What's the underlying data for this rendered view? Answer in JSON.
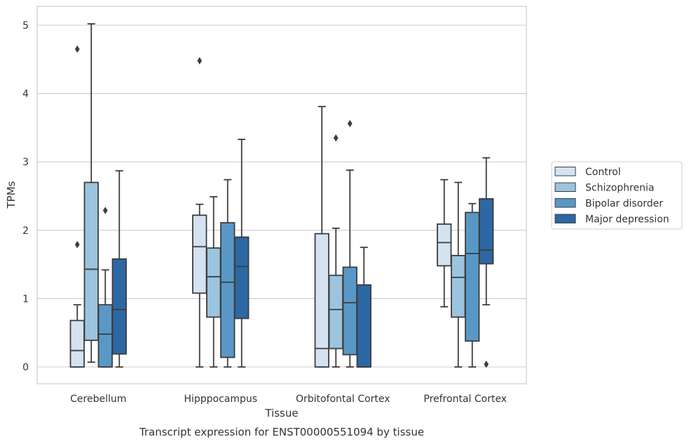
{
  "caption": "Transcript expression for ENST00000551094 by tissue",
  "chart_data": {
    "type": "box",
    "xlabel": "Tissue",
    "ylabel": "TPMs",
    "ylim": [
      -0.25,
      5.27
    ],
    "yticks": [
      0,
      1,
      2,
      3,
      4,
      5
    ],
    "grid": true,
    "legend_position": "right",
    "categories": [
      "Cerebellum",
      "Hipppocampus",
      "Orbitofontal Cortex",
      "Prefrontal Cortex"
    ],
    "series": [
      {
        "name": "Control",
        "color": "#d4e2f1",
        "boxes": [
          {
            "whisker_low": 0.0,
            "q1": 0.0,
            "median": 0.24,
            "q3": 0.68,
            "whisker_high": 0.91,
            "outliers": [
              1.79,
              4.65
            ]
          },
          {
            "whisker_low": 0.0,
            "q1": 1.08,
            "median": 1.76,
            "q3": 2.22,
            "whisker_high": 2.38,
            "outliers": [
              4.48
            ]
          },
          {
            "whisker_low": 0.0,
            "q1": 0.0,
            "median": 0.27,
            "q3": 1.95,
            "whisker_high": 3.81,
            "outliers": []
          },
          {
            "whisker_low": 0.88,
            "q1": 1.48,
            "median": 1.82,
            "q3": 2.09,
            "whisker_high": 2.74,
            "outliers": []
          }
        ]
      },
      {
        "name": "Schizophrenia",
        "color": "#9cc4de",
        "boxes": [
          {
            "whisker_low": 0.07,
            "q1": 0.39,
            "median": 1.43,
            "q3": 2.7,
            "whisker_high": 5.02,
            "outliers": []
          },
          {
            "whisker_low": 0.0,
            "q1": 0.73,
            "median": 1.32,
            "q3": 1.74,
            "whisker_high": 2.49,
            "outliers": []
          },
          {
            "whisker_low": 0.0,
            "q1": 0.27,
            "median": 0.84,
            "q3": 1.34,
            "whisker_high": 2.03,
            "outliers": [
              3.35
            ]
          },
          {
            "whisker_low": 0.0,
            "q1": 0.73,
            "median": 1.31,
            "q3": 1.63,
            "whisker_high": 2.7,
            "outliers": []
          }
        ]
      },
      {
        "name": "Bipolar disorder",
        "color": "#5998c6",
        "boxes": [
          {
            "whisker_low": 0.0,
            "q1": 0.0,
            "median": 0.48,
            "q3": 0.91,
            "whisker_high": 1.42,
            "outliers": [
              2.29
            ]
          },
          {
            "whisker_low": 0.0,
            "q1": 0.14,
            "median": 1.24,
            "q3": 2.11,
            "whisker_high": 2.74,
            "outliers": []
          },
          {
            "whisker_low": 0.0,
            "q1": 0.18,
            "median": 0.94,
            "q3": 1.46,
            "whisker_high": 2.88,
            "outliers": [
              3.56
            ]
          },
          {
            "whisker_low": 0.0,
            "q1": 0.38,
            "median": 1.66,
            "q3": 2.26,
            "whisker_high": 2.39,
            "outliers": []
          }
        ]
      },
      {
        "name": "Major depression",
        "color": "#2c68a3",
        "boxes": [
          {
            "whisker_low": 0.0,
            "q1": 0.19,
            "median": 0.84,
            "q3": 1.58,
            "whisker_high": 2.87,
            "outliers": []
          },
          {
            "whisker_low": 0.0,
            "q1": 0.71,
            "median": 1.47,
            "q3": 1.9,
            "whisker_high": 3.33,
            "outliers": []
          },
          {
            "whisker_low": 0.0,
            "q1": 0.0,
            "median": 0.0,
            "q3": 1.2,
            "whisker_high": 1.75,
            "outliers": []
          },
          {
            "whisker_low": 0.91,
            "q1": 1.51,
            "median": 1.71,
            "q3": 2.46,
            "whisker_high": 3.06,
            "outliers": [
              0.04
            ]
          }
        ]
      }
    ]
  }
}
